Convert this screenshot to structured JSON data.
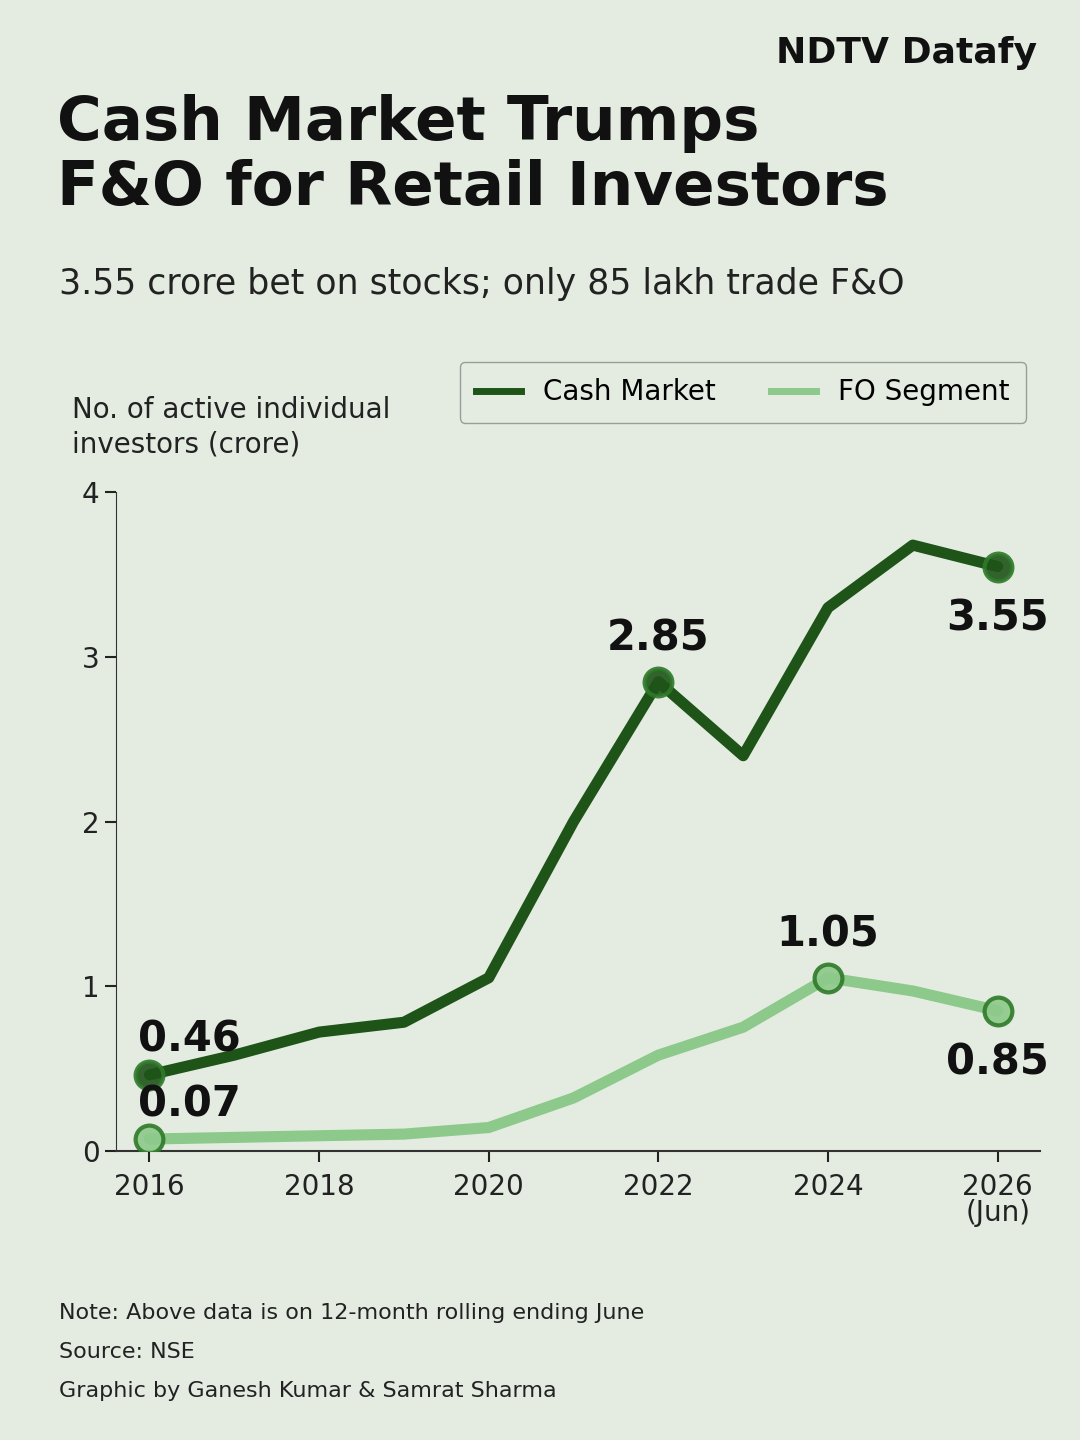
{
  "brand": "NDTV Datafy",
  "chart_data": {
    "type": "line",
    "title": "Cash Market Trumps\nF&O for Retail Investors",
    "subtitle": "3.55 crore bet on stocks; only 85 lakh trade F&O",
    "y_label": "No. of active individual\ninvestors (crore)",
    "x": [
      2016,
      2017,
      2018,
      2019,
      2020,
      2021,
      2022,
      2023,
      2024,
      2025,
      2026
    ],
    "series": [
      {
        "name": "Cash Market",
        "color": "#1f5419",
        "marker": "o",
        "values": [
          0.46,
          0.58,
          0.72,
          0.78,
          1.05,
          2.0,
          2.85,
          2.4,
          3.3,
          3.68,
          3.55
        ],
        "labeled_x": [
          2016,
          2022,
          2026
        ]
      },
      {
        "name": "FO Segment",
        "color": "#8cc98a",
        "marker": "o",
        "values": [
          0.07,
          0.08,
          0.09,
          0.1,
          0.14,
          0.32,
          0.58,
          0.75,
          1.05,
          0.97,
          0.85
        ],
        "labeled_x": [
          2016,
          2024,
          2026
        ]
      }
    ],
    "xlim": [
      2015.6,
      2026.5
    ],
    "xticks": [
      2016,
      2018,
      2020,
      2022,
      2024,
      {
        "value": 2026,
        "label": "2026\n(Jun)"
      }
    ],
    "ylim": [
      0,
      4
    ],
    "yticks": [
      0,
      1,
      2,
      3,
      4
    ],
    "grid": false,
    "legend": "upper right",
    "notes": [
      "Note: Above data is on 12-month rolling ending June",
      "Source: NSE",
      "Graphic by Ganesh Kumar & Samrat Sharma"
    ]
  }
}
